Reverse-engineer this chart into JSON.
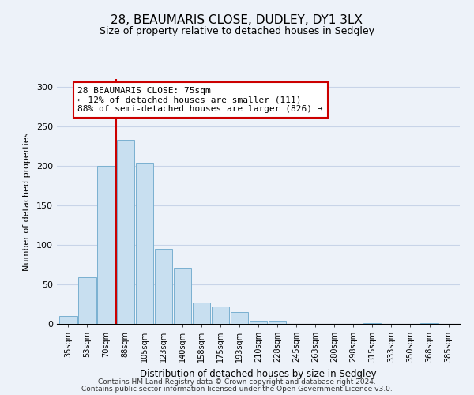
{
  "title": "28, BEAUMARIS CLOSE, DUDLEY, DY1 3LX",
  "subtitle": "Size of property relative to detached houses in Sedgley",
  "xlabel": "Distribution of detached houses by size in Sedgley",
  "ylabel": "Number of detached properties",
  "bar_labels": [
    "35sqm",
    "53sqm",
    "70sqm",
    "88sqm",
    "105sqm",
    "123sqm",
    "140sqm",
    "158sqm",
    "175sqm",
    "193sqm",
    "210sqm",
    "228sqm",
    "245sqm",
    "263sqm",
    "280sqm",
    "298sqm",
    "315sqm",
    "333sqm",
    "350sqm",
    "368sqm",
    "385sqm"
  ],
  "bar_values": [
    10,
    59,
    200,
    233,
    204,
    95,
    71,
    27,
    22,
    15,
    4,
    4,
    0,
    0,
    0,
    0,
    1,
    0,
    0,
    1,
    0
  ],
  "bar_color": "#c8dff0",
  "bar_edge_color": "#7ab0d0",
  "vline_color": "#cc0000",
  "annotation_line1": "28 BEAUMARIS CLOSE: 75sqm",
  "annotation_line2": "← 12% of detached houses are smaller (111)",
  "annotation_line3": "88% of semi-detached houses are larger (826) →",
  "annotation_box_color": "#ffffff",
  "annotation_box_edge": "#cc0000",
  "ylim": [
    0,
    310
  ],
  "yticks": [
    0,
    50,
    100,
    150,
    200,
    250,
    300
  ],
  "bg_color": "#edf2f9",
  "grid_color": "#c8d4e8",
  "footer_line1": "Contains HM Land Registry data © Crown copyright and database right 2024.",
  "footer_line2": "Contains public sector information licensed under the Open Government Licence v3.0."
}
